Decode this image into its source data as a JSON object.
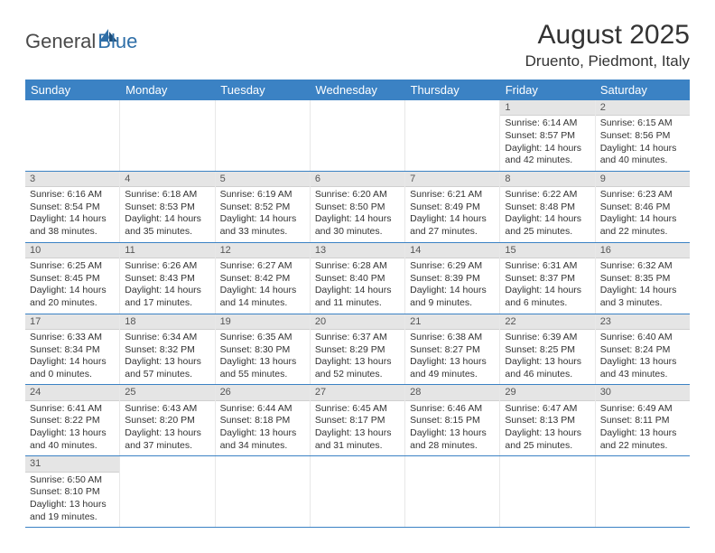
{
  "logo": {
    "text1": "General",
    "text2": "Blue"
  },
  "title": "August 2025",
  "location": "Druento, Piedmont, Italy",
  "colors": {
    "header_bg": "#3b82c4",
    "header_text": "#ffffff",
    "daynum_bg": "#e5e5e5",
    "border": "#3b82c4",
    "text": "#333333"
  },
  "day_names": [
    "Sunday",
    "Monday",
    "Tuesday",
    "Wednesday",
    "Thursday",
    "Friday",
    "Saturday"
  ],
  "weeks": [
    [
      null,
      null,
      null,
      null,
      null,
      {
        "n": "1",
        "sr": "6:14 AM",
        "ss": "8:57 PM",
        "dl": "14 hours and 42 minutes."
      },
      {
        "n": "2",
        "sr": "6:15 AM",
        "ss": "8:56 PM",
        "dl": "14 hours and 40 minutes."
      }
    ],
    [
      {
        "n": "3",
        "sr": "6:16 AM",
        "ss": "8:54 PM",
        "dl": "14 hours and 38 minutes."
      },
      {
        "n": "4",
        "sr": "6:18 AM",
        "ss": "8:53 PM",
        "dl": "14 hours and 35 minutes."
      },
      {
        "n": "5",
        "sr": "6:19 AM",
        "ss": "8:52 PM",
        "dl": "14 hours and 33 minutes."
      },
      {
        "n": "6",
        "sr": "6:20 AM",
        "ss": "8:50 PM",
        "dl": "14 hours and 30 minutes."
      },
      {
        "n": "7",
        "sr": "6:21 AM",
        "ss": "8:49 PM",
        "dl": "14 hours and 27 minutes."
      },
      {
        "n": "8",
        "sr": "6:22 AM",
        "ss": "8:48 PM",
        "dl": "14 hours and 25 minutes."
      },
      {
        "n": "9",
        "sr": "6:23 AM",
        "ss": "8:46 PM",
        "dl": "14 hours and 22 minutes."
      }
    ],
    [
      {
        "n": "10",
        "sr": "6:25 AM",
        "ss": "8:45 PM",
        "dl": "14 hours and 20 minutes."
      },
      {
        "n": "11",
        "sr": "6:26 AM",
        "ss": "8:43 PM",
        "dl": "14 hours and 17 minutes."
      },
      {
        "n": "12",
        "sr": "6:27 AM",
        "ss": "8:42 PM",
        "dl": "14 hours and 14 minutes."
      },
      {
        "n": "13",
        "sr": "6:28 AM",
        "ss": "8:40 PM",
        "dl": "14 hours and 11 minutes."
      },
      {
        "n": "14",
        "sr": "6:29 AM",
        "ss": "8:39 PM",
        "dl": "14 hours and 9 minutes."
      },
      {
        "n": "15",
        "sr": "6:31 AM",
        "ss": "8:37 PM",
        "dl": "14 hours and 6 minutes."
      },
      {
        "n": "16",
        "sr": "6:32 AM",
        "ss": "8:35 PM",
        "dl": "14 hours and 3 minutes."
      }
    ],
    [
      {
        "n": "17",
        "sr": "6:33 AM",
        "ss": "8:34 PM",
        "dl": "14 hours and 0 minutes."
      },
      {
        "n": "18",
        "sr": "6:34 AM",
        "ss": "8:32 PM",
        "dl": "13 hours and 57 minutes."
      },
      {
        "n": "19",
        "sr": "6:35 AM",
        "ss": "8:30 PM",
        "dl": "13 hours and 55 minutes."
      },
      {
        "n": "20",
        "sr": "6:37 AM",
        "ss": "8:29 PM",
        "dl": "13 hours and 52 minutes."
      },
      {
        "n": "21",
        "sr": "6:38 AM",
        "ss": "8:27 PM",
        "dl": "13 hours and 49 minutes."
      },
      {
        "n": "22",
        "sr": "6:39 AM",
        "ss": "8:25 PM",
        "dl": "13 hours and 46 minutes."
      },
      {
        "n": "23",
        "sr": "6:40 AM",
        "ss": "8:24 PM",
        "dl": "13 hours and 43 minutes."
      }
    ],
    [
      {
        "n": "24",
        "sr": "6:41 AM",
        "ss": "8:22 PM",
        "dl": "13 hours and 40 minutes."
      },
      {
        "n": "25",
        "sr": "6:43 AM",
        "ss": "8:20 PM",
        "dl": "13 hours and 37 minutes."
      },
      {
        "n": "26",
        "sr": "6:44 AM",
        "ss": "8:18 PM",
        "dl": "13 hours and 34 minutes."
      },
      {
        "n": "27",
        "sr": "6:45 AM",
        "ss": "8:17 PM",
        "dl": "13 hours and 31 minutes."
      },
      {
        "n": "28",
        "sr": "6:46 AM",
        "ss": "8:15 PM",
        "dl": "13 hours and 28 minutes."
      },
      {
        "n": "29",
        "sr": "6:47 AM",
        "ss": "8:13 PM",
        "dl": "13 hours and 25 minutes."
      },
      {
        "n": "30",
        "sr": "6:49 AM",
        "ss": "8:11 PM",
        "dl": "13 hours and 22 minutes."
      }
    ],
    [
      {
        "n": "31",
        "sr": "6:50 AM",
        "ss": "8:10 PM",
        "dl": "13 hours and 19 minutes."
      },
      null,
      null,
      null,
      null,
      null,
      null
    ]
  ],
  "labels": {
    "sunrise": "Sunrise:",
    "sunset": "Sunset:",
    "daylight": "Daylight:"
  }
}
